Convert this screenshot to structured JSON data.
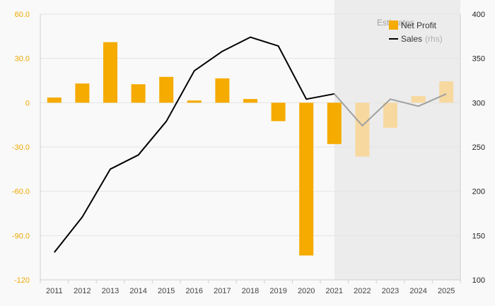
{
  "chart_data": {
    "type": "bar",
    "categories": [
      "2011",
      "2012",
      "2013",
      "2014",
      "2015",
      "2016",
      "2017",
      "2018",
      "2019",
      "2020",
      "2021",
      "2022",
      "2023",
      "2024",
      "2025"
    ],
    "series": [
      {
        "name": "Net Profit",
        "kind": "bar",
        "axis": "left",
        "color": "#f5ab00",
        "estimate_color": "#f7d9a0",
        "values": [
          3.5,
          13.0,
          41.0,
          12.5,
          17.5,
          1.5,
          16.5,
          2.5,
          -12.5,
          -103.5,
          -28.0,
          -36.5,
          -17.0,
          4.5,
          14.5
        ]
      },
      {
        "name": "Sales",
        "name_suffix": "(rhs)",
        "kind": "line",
        "axis": "right",
        "color": "#000000",
        "estimate_color": "#a0a0a0",
        "values": [
          131,
          171,
          225,
          241,
          279,
          336,
          358,
          374,
          364,
          304,
          310,
          274,
          304,
          296,
          310
        ]
      }
    ],
    "estimate_start": "2021",
    "estimate_label": "Estimates",
    "y_left": {
      "min": -120,
      "max": 60,
      "ticks": [
        "60.0",
        "30.0",
        "0",
        "-30.0",
        "-60.0",
        "-90.0",
        "-120"
      ]
    },
    "y_right": {
      "min": 100,
      "max": 400,
      "ticks": [
        "400",
        "350",
        "300",
        "250",
        "200",
        "150",
        "100"
      ]
    },
    "grid": true,
    "legend": "top-right",
    "title": "",
    "xlabel": "",
    "ylabel": ""
  }
}
